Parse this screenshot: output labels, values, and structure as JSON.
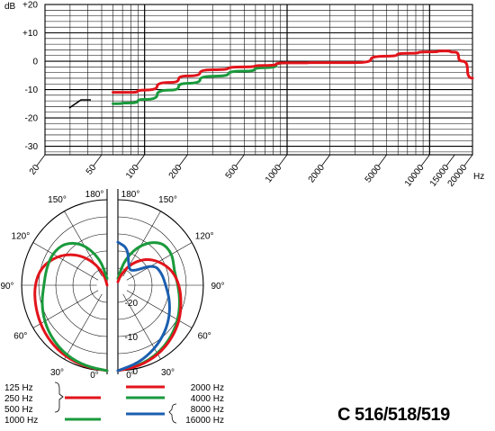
{
  "chart_data": [
    {
      "type": "line",
      "xscale": "log",
      "xlim": [
        20,
        20000
      ],
      "ylim": [
        -33,
        20
      ],
      "ylabel": "dB",
      "xlabel": "Hz",
      "y_tick_labels": [
        "+20",
        "+10",
        "0",
        "-10",
        "-20",
        "-30"
      ],
      "y_tick_values": [
        20,
        10,
        0,
        -10,
        -20,
        -30
      ],
      "x_tick_labels": [
        "20",
        "50",
        "100",
        "200",
        "500",
        "1000",
        "2000",
        "5000",
        "10000",
        "15000",
        "20000"
      ],
      "x_tick_values": [
        20,
        50,
        100,
        200,
        500,
        1000,
        2000,
        5000,
        10000,
        15000,
        20000
      ],
      "grid": true,
      "series": [
        {
          "color": "#e2141b",
          "x": [
            60,
            80,
            100,
            150,
            200,
            300,
            500,
            700,
            1000,
            2000,
            3000,
            5000,
            7000,
            10000,
            13000,
            15000,
            17000,
            20000
          ],
          "y": [
            -11,
            -11,
            -10.2,
            -7.5,
            -5.2,
            -3,
            -2,
            -1.5,
            -0.6,
            -0.5,
            -0.5,
            1.8,
            2.8,
            3.3,
            3.6,
            3.2,
            0,
            -6
          ]
        },
        {
          "color": "#1a9a3c",
          "x": [
            60,
            80,
            100,
            150,
            200,
            300,
            500,
            700,
            1000
          ],
          "y": [
            -15,
            -14.7,
            -13.5,
            -10.2,
            -7.8,
            -5.3,
            -3.5,
            -2.3,
            -0.6
          ]
        }
      ],
      "annotation": "high-pass filter symbol at -15 to -12 dB"
    },
    {
      "type": "polar",
      "angle_labels": [
        "180°",
        "150°",
        "120°",
        "90°",
        "60°",
        "30°",
        "0°",
        "180°",
        "150°",
        "120°",
        "90°",
        "60°",
        "30°",
        "0°"
      ],
      "radial_labels": [
        "-20",
        "-10",
        "0"
      ],
      "radial_values": [
        -20,
        -10,
        0
      ],
      "rlim": [
        -25,
        0
      ],
      "left_series": [
        {
          "color": "#e2141b",
          "angles": [
            0,
            15,
            30,
            45,
            60,
            75,
            90,
            105,
            120,
            135,
            150,
            165,
            180
          ],
          "levels": [
            0,
            -0.3,
            -0.8,
            -1.5,
            -2.4,
            -3.2,
            -3.8,
            -5,
            -8,
            -12,
            -17,
            -22,
            -25
          ]
        },
        {
          "color": "#1a9a3c",
          "angles": [
            0,
            15,
            30,
            45,
            60,
            75,
            90,
            105,
            120,
            135,
            150,
            165,
            180
          ],
          "levels": [
            0,
            -0.5,
            -1.3,
            -2.5,
            -3.8,
            -5.2,
            -6.5,
            -6.6,
            -6.5,
            -7.5,
            -11,
            -17,
            -23
          ]
        }
      ],
      "right_series": [
        {
          "color": "#1a9a3c",
          "angles": [
            0,
            15,
            30,
            45,
            60,
            75,
            90,
            105,
            120,
            135,
            150,
            165,
            180
          ],
          "levels": [
            0,
            -0.7,
            -1.8,
            -3.2,
            -4.7,
            -6.2,
            -7.4,
            -8,
            -6.6,
            -7,
            -11,
            -17,
            -23
          ]
        },
        {
          "color": "#e2141b",
          "angles": [
            0,
            15,
            30,
            45,
            60,
            75,
            90,
            105,
            120,
            135,
            150,
            165,
            180
          ],
          "levels": [
            0,
            -0.5,
            -1.5,
            -2.8,
            -4.2,
            -5.8,
            -7,
            -8.5,
            -11,
            -14,
            -18,
            -22,
            -24
          ]
        },
        {
          "color": "#1b5fb0",
          "angles": [
            0,
            15,
            30,
            45,
            60,
            75,
            90,
            105,
            120,
            135,
            150,
            165,
            180
          ],
          "levels": [
            0,
            -1.5,
            -3.5,
            -5.5,
            -7.5,
            -9.4,
            -11,
            -11.7,
            -12.8,
            -19.5,
            -18.7,
            -13.8,
            -12.4
          ]
        }
      ]
    }
  ],
  "legend": {
    "left": {
      "labels": [
        "125 Hz",
        "250 Hz",
        "500 Hz",
        "1000 Hz"
      ],
      "red_label_index": 1,
      "green_label_index": 3
    },
    "right": {
      "labels": [
        "2000 Hz",
        "4000 Hz",
        "8000 Hz",
        "16000 Hz"
      ],
      "red_label_index": 0,
      "green_label_index": 1,
      "blue_label_index": 2
    }
  },
  "colors": {
    "red": "#e2141b",
    "green": "#1a9a3c",
    "blue": "#1b5fb0"
  },
  "model": "C 516/518/519"
}
